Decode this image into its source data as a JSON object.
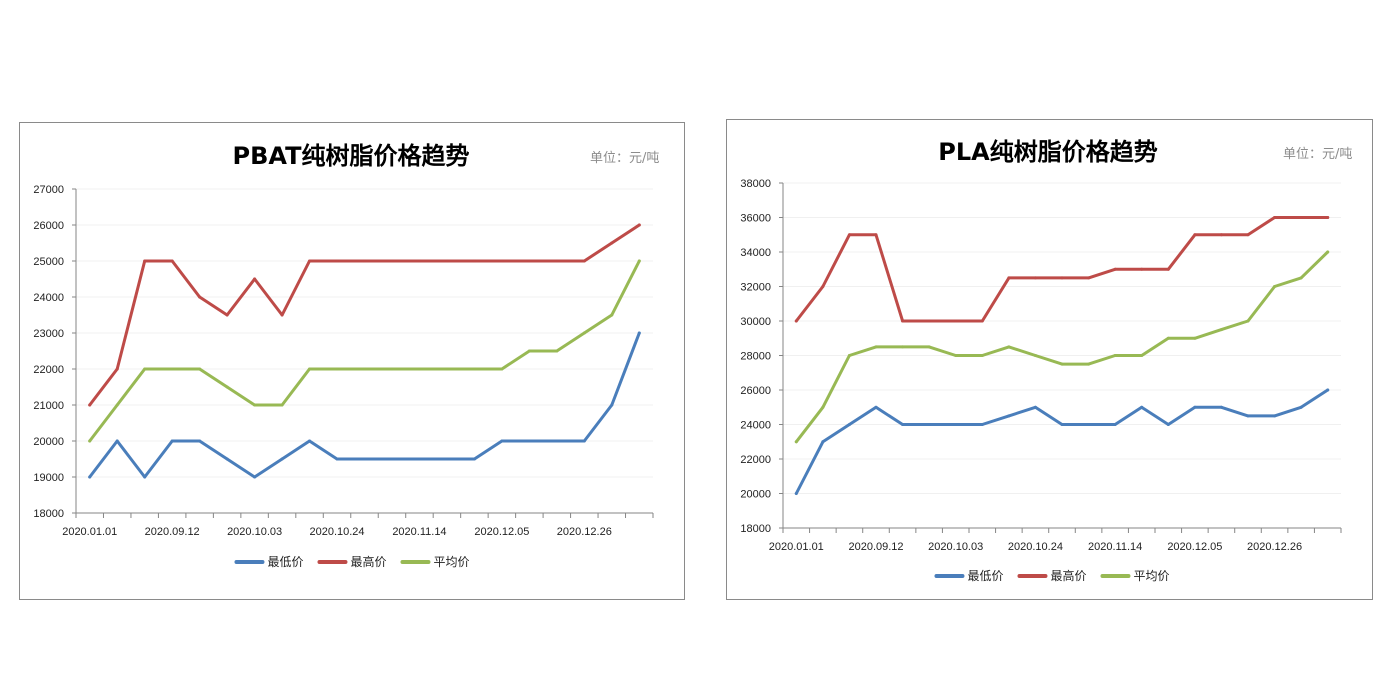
{
  "chart_data": [
    {
      "type": "line",
      "title": "PBAT纯树脂价格趋势",
      "unit_label": "单位：元/吨",
      "categories": [
        "2020.01.01",
        "",
        "",
        "2020.09.12",
        "",
        "",
        "2020.10.03",
        "",
        "",
        "2020.10.24",
        "",
        "",
        "2020.11.14",
        "",
        "",
        "2020.12.05",
        "",
        "",
        "2020.12.26",
        "",
        ""
      ],
      "ylim": [
        18000,
        27000
      ],
      "ytick_step": 1000,
      "grid": true,
      "legend_position": "bottom",
      "series": [
        {
          "name": "最低价",
          "color": "#4a7ebb",
          "values": [
            19000,
            20000,
            19000,
            20000,
            20000,
            19500,
            19000,
            19500,
            20000,
            19500,
            19500,
            19500,
            19500,
            19500,
            19500,
            20000,
            20000,
            20000,
            20000,
            21000,
            23000
          ]
        },
        {
          "name": "最高价",
          "color": "#be4b48",
          "values": [
            21000,
            22000,
            25000,
            25000,
            24000,
            23500,
            24500,
            23500,
            25000,
            25000,
            25000,
            25000,
            25000,
            25000,
            25000,
            25000,
            25000,
            25000,
            25000,
            25500,
            26000
          ]
        },
        {
          "name": "平均价",
          "color": "#98b954",
          "values": [
            20000,
            21000,
            22000,
            22000,
            22000,
            21500,
            21000,
            21000,
            22000,
            22000,
            22000,
            22000,
            22000,
            22000,
            22000,
            22000,
            22500,
            22500,
            23000,
            23500,
            25000
          ]
        }
      ]
    },
    {
      "type": "line",
      "title": "PLA纯树脂价格趋势",
      "unit_label": "单位：元/吨",
      "categories": [
        "2020.01.01",
        "",
        "",
        "2020.09.12",
        "",
        "",
        "2020.10.03",
        "",
        "",
        "2020.10.24",
        "",
        "",
        "2020.11.14",
        "",
        "",
        "2020.12.05",
        "",
        "",
        "2020.12.26",
        "",
        ""
      ],
      "ylim": [
        18000,
        38000
      ],
      "ytick_step": 2000,
      "grid": true,
      "legend_position": "bottom",
      "series": [
        {
          "name": "最低价",
          "color": "#4a7ebb",
          "values": [
            20000,
            23000,
            24000,
            25000,
            24000,
            24000,
            24000,
            24000,
            24500,
            25000,
            24000,
            24000,
            24000,
            25000,
            24000,
            25000,
            25000,
            24500,
            24500,
            25000,
            26000
          ]
        },
        {
          "name": "最高价",
          "color": "#be4b48",
          "values": [
            30000,
            32000,
            35000,
            35000,
            30000,
            30000,
            30000,
            30000,
            32500,
            32500,
            32500,
            32500,
            33000,
            33000,
            33000,
            35000,
            35000,
            35000,
            36000,
            36000,
            36000
          ]
        },
        {
          "name": "平均价",
          "color": "#98b954",
          "values": [
            23000,
            25000,
            28000,
            28500,
            28500,
            28500,
            28000,
            28000,
            28500,
            28000,
            27500,
            27500,
            28000,
            28000,
            29000,
            29000,
            29500,
            30000,
            32000,
            32500,
            34000
          ]
        }
      ]
    }
  ]
}
